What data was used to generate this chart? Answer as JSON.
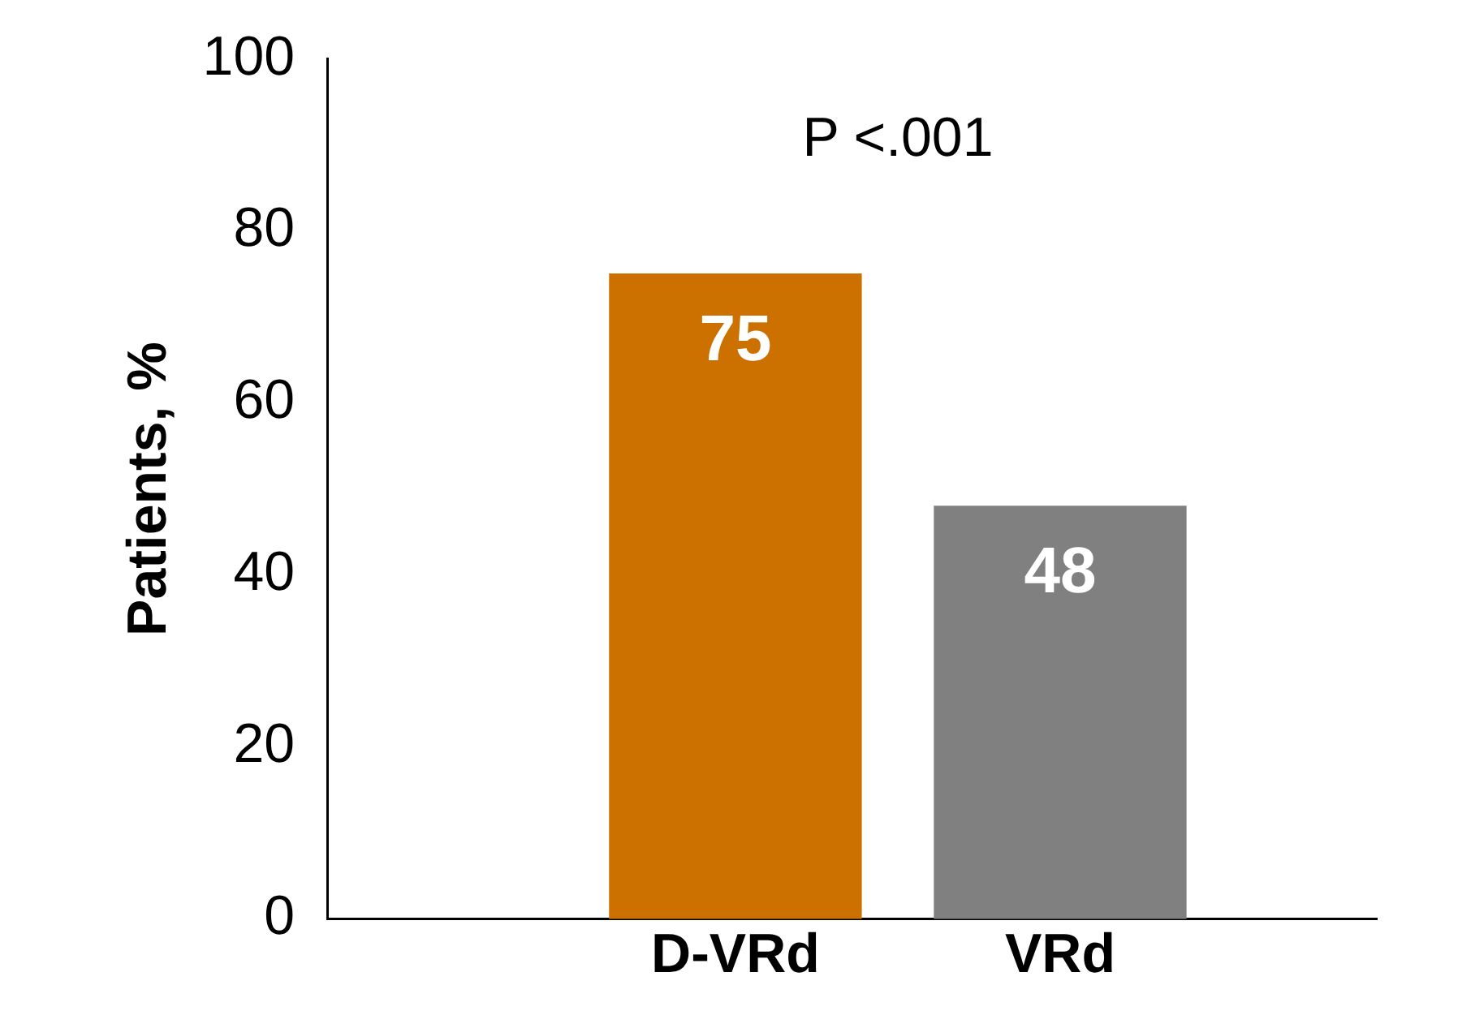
{
  "chart_data": {
    "type": "bar",
    "categories": [
      "D-VRd",
      "VRd"
    ],
    "ylabel": "Patients, %",
    "values": [
      75,
      48
    ],
    "colors": [
      "#cc7000",
      "#808080"
    ],
    "ylim": [
      0,
      100
    ],
    "yticks": [
      0,
      20,
      40,
      60,
      80,
      100
    ],
    "grid": false,
    "legend": false,
    "data_labels": true,
    "annotations": [
      "P <.001"
    ]
  }
}
